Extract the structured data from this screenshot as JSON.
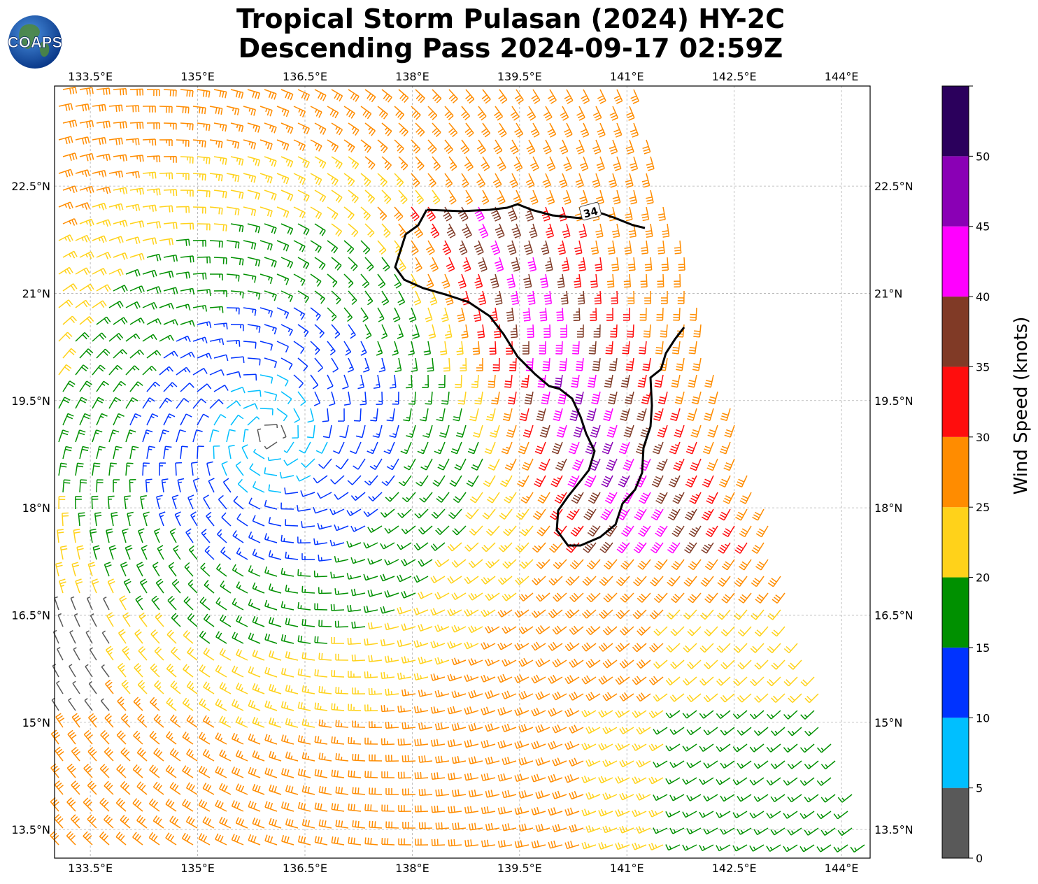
{
  "title": {
    "line1": "Tropical Storm Pulasan (2024) HY-2C",
    "line2": "Descending Pass 2024-09-17 02:59Z"
  },
  "logo": {
    "text": "COAPS",
    "icon": "globe-icon"
  },
  "map": {
    "lon_labels": [
      "133.5°E",
      "135°E",
      "136.5°E",
      "138°E",
      "139.5°E",
      "141°E",
      "142.5°E",
      "144°E"
    ],
    "lon_values": [
      133.5,
      135.0,
      136.5,
      138.0,
      139.5,
      141.0,
      142.5,
      144.0
    ],
    "lat_labels": [
      "22.5°N",
      "21°N",
      "19.5°N",
      "18°N",
      "16.5°N",
      "15°N",
      "13.5°N"
    ],
    "lat_values": [
      22.5,
      21.0,
      19.5,
      18.0,
      16.5,
      15.0,
      13.5
    ],
    "lon_range": [
      133.0,
      144.4
    ],
    "lat_range": [
      13.1,
      23.9
    ],
    "storm_center": {
      "lon": 136.0,
      "lat": 19.0
    },
    "contour_label": "34"
  },
  "colorbar": {
    "label": "Wind Speed (knots)",
    "ticks": [
      "0",
      "5",
      "10",
      "15",
      "20",
      "25",
      "30",
      "35",
      "40",
      "45",
      "50"
    ],
    "bins": [
      {
        "min": 0,
        "max": 5,
        "color": "#595959"
      },
      {
        "min": 5,
        "max": 10,
        "color": "#00bfff"
      },
      {
        "min": 10,
        "max": 15,
        "color": "#0033ff"
      },
      {
        "min": 15,
        "max": 20,
        "color": "#009000"
      },
      {
        "min": 20,
        "max": 25,
        "color": "#ffd21a"
      },
      {
        "min": 25,
        "max": 30,
        "color": "#ff8c00"
      },
      {
        "min": 30,
        "max": 35,
        "color": "#ff0d0d"
      },
      {
        "min": 35,
        "max": 40,
        "color": "#803a26"
      },
      {
        "min": 40,
        "max": 45,
        "color": "#ff00ff"
      },
      {
        "min": 45,
        "max": 50,
        "color": "#8a00b5"
      },
      {
        "min": 50,
        "max": 55,
        "color": "#2b005c"
      }
    ]
  }
}
